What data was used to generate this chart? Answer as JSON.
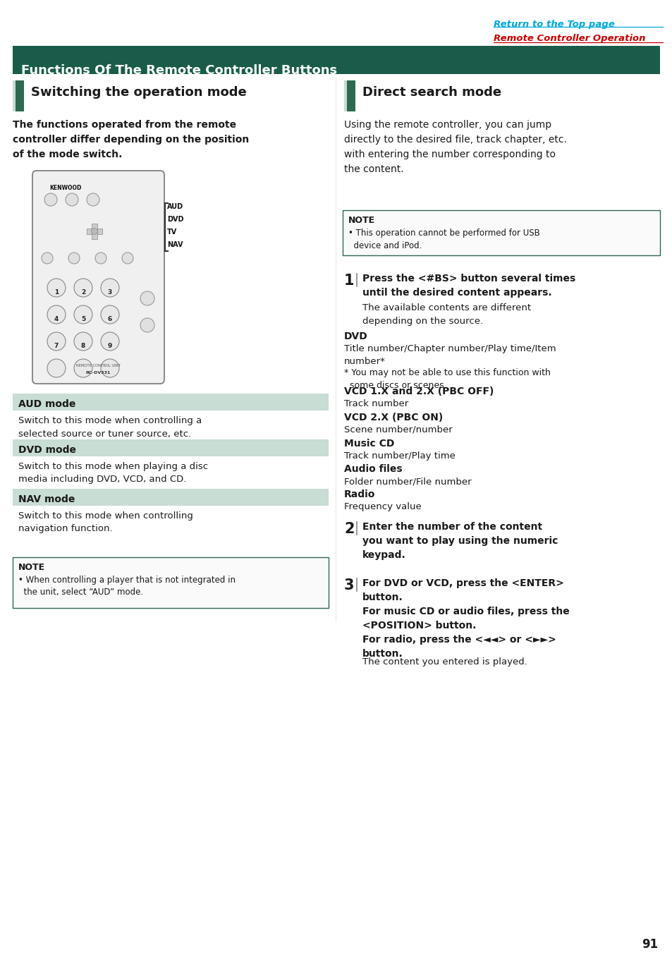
{
  "page_bg": "#ffffff",
  "header_link1": "Return to the Top page",
  "header_link2": "Remote Controller Operation",
  "header_link1_color": "#00aadd",
  "header_link2_color": "#cc0000",
  "main_title": "Functions Of The Remote Controller Buttons",
  "main_title_bg": "#1a5c4a",
  "main_title_color": "#ffffff",
  "section1_title": "Switching the operation mode",
  "section2_title": "Direct search mode",
  "section_title_color": "#1a1a1a",
  "section_icon_color": "#2d6a50",
  "section_icon_light": "#c8ddd4",
  "section1_body": "The functions operated from the remote\ncontroller differ depending on the position\nof the mode switch.",
  "section2_body": "Using the remote controller, you can jump\ndirectly to the desired file, track chapter, etc.\nwith entering the number corresponding to\nthe content.",
  "aud_mode_title": "AUD mode",
  "aud_mode_body": "Switch to this mode when controlling a\nselected source or tuner source, etc.",
  "dvd_mode_title": "DVD mode",
  "dvd_mode_body": "Switch to this mode when playing a disc\nmedia including DVD, VCD, and CD.",
  "nav_mode_title": "NAV mode",
  "nav_mode_body": "Switch to this mode when controlling\nnavigation function.",
  "mode_bar_bg": "#c8ddd4",
  "mode_bar_text_color": "#1a1a1a",
  "note1_title": "NOTE",
  "note1_body": "• When controlling a player that is not integrated in\n  the unit, select “AUD” mode.",
  "note2_title": "NOTE",
  "note2_body": "• This operation cannot be performed for USB\n  device and iPod.",
  "note_border": "#2d6a50",
  "step1_num": "1",
  "step1_bold": "Press the <#BS> button several times\nuntil the desired content appears.",
  "step1_body": "The available contents are different\ndepending on the source.",
  "dvd_label": "DVD",
  "dvd_content": "Title number/Chapter number/Play time/Item\nnumber*",
  "dvd_note": "* You may not be able to use this function with\n  some discs or scenes.",
  "vcd1_label": "VCD 1.X and 2.X (PBC OFF)",
  "vcd1_content": "Track number",
  "vcd2_label": "VCD 2.X (PBC ON)",
  "vcd2_content": "Scene number/number",
  "mcd_label": "Music CD",
  "mcd_content": "Track number/Play time",
  "audio_label": "Audio files",
  "audio_content": "Folder number/File number",
  "radio_label": "Radio",
  "radio_content": "Frequency value",
  "step2_num": "2",
  "step2_bold": "Enter the number of the content\nyou want to play using the numeric\nkeypad.",
  "step3_num": "3",
  "step3_bold": "For DVD or VCD, press the <ENTER>\nbutton.\nFor music CD or audio files, press the\n<POSITION> button.\nFor radio, press the <◄◄> or <►►>\nbutton.",
  "step3_body": "The content you entered is played.",
  "page_num": "91",
  "bold_color": "#1a1a1a",
  "label_bold_color": "#1a1a1a"
}
